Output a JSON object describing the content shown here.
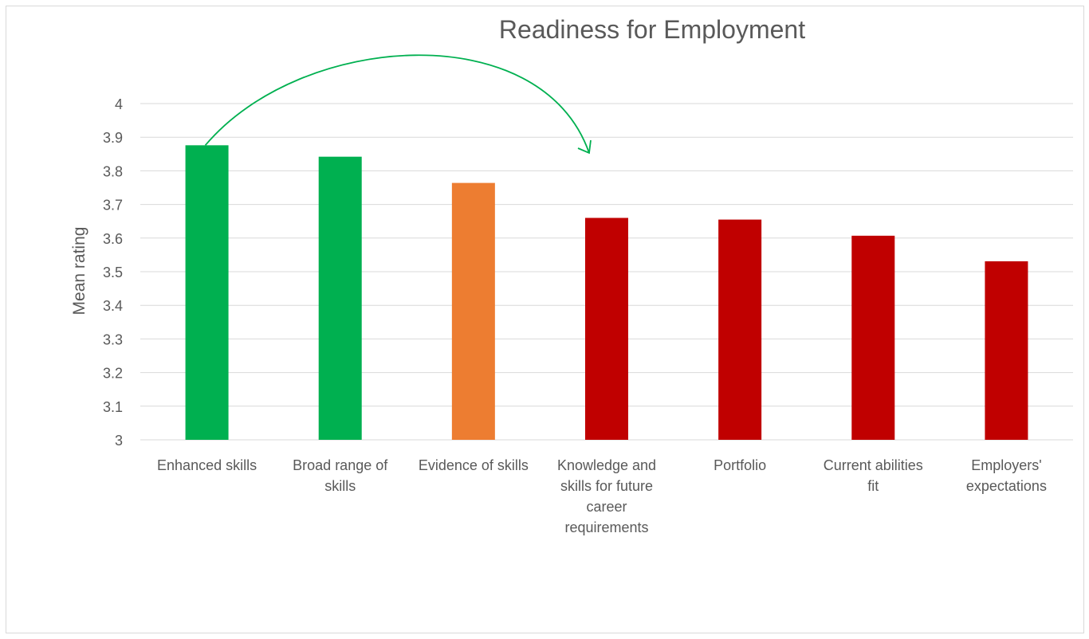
{
  "chart_data": {
    "type": "bar",
    "title": "Readiness for Employment",
    "xlabel": "",
    "ylabel": "Mean rating",
    "ylim": [
      3,
      4
    ],
    "yticks": [
      "3",
      "3.1",
      "3.2",
      "3.3",
      "3.4",
      "3.5",
      "3.6",
      "3.7",
      "3.8",
      "3.9",
      "4"
    ],
    "grid": true,
    "legend": "none",
    "categories": [
      [
        "Enhanced skills"
      ],
      [
        "Broad range of",
        "skills"
      ],
      [
        "Evidence of skills"
      ],
      [
        "Knowledge and",
        "skills for future",
        "career",
        "requirements"
      ],
      [
        "Portfolio"
      ],
      [
        "Current abilities",
        "fit"
      ],
      [
        "Employers'",
        "expectations"
      ]
    ],
    "values": [
      3.876,
      3.842,
      3.764,
      3.66,
      3.655,
      3.607,
      3.531
    ],
    "bar_colors": [
      "#00b050",
      "#00b050",
      "#ed7d31",
      "#c00000",
      "#c00000",
      "#c00000",
      "#c00000"
    ],
    "annotation": {
      "type": "curved-arrow",
      "color": "#00b050",
      "from_category_index": 0,
      "to_category_index": 3
    }
  }
}
